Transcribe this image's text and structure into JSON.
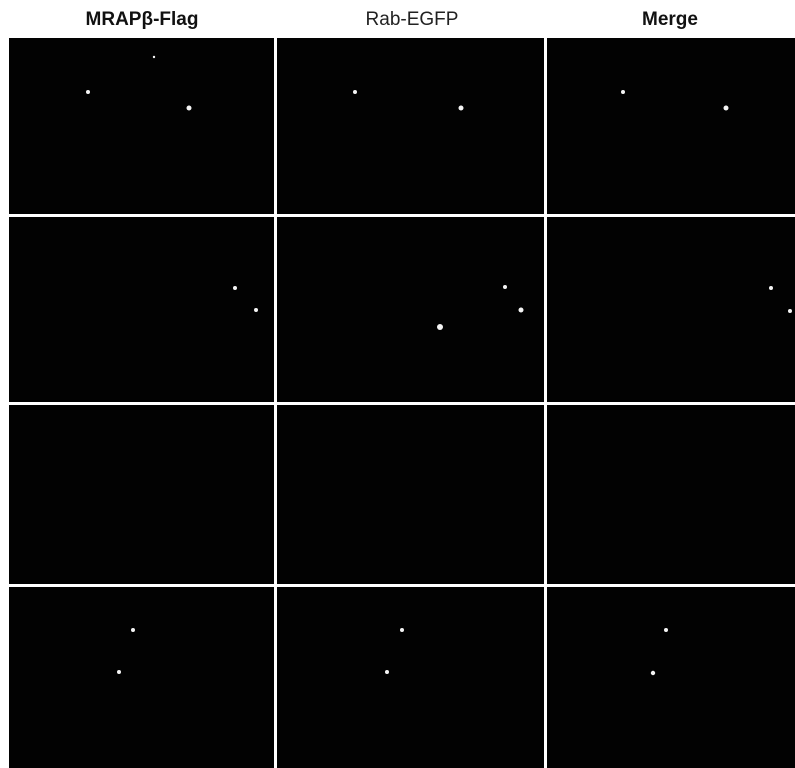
{
  "header": {
    "columns": [
      "MRAPβ-Flag",
      "Rab-EGFP",
      "Merge"
    ]
  }
}
